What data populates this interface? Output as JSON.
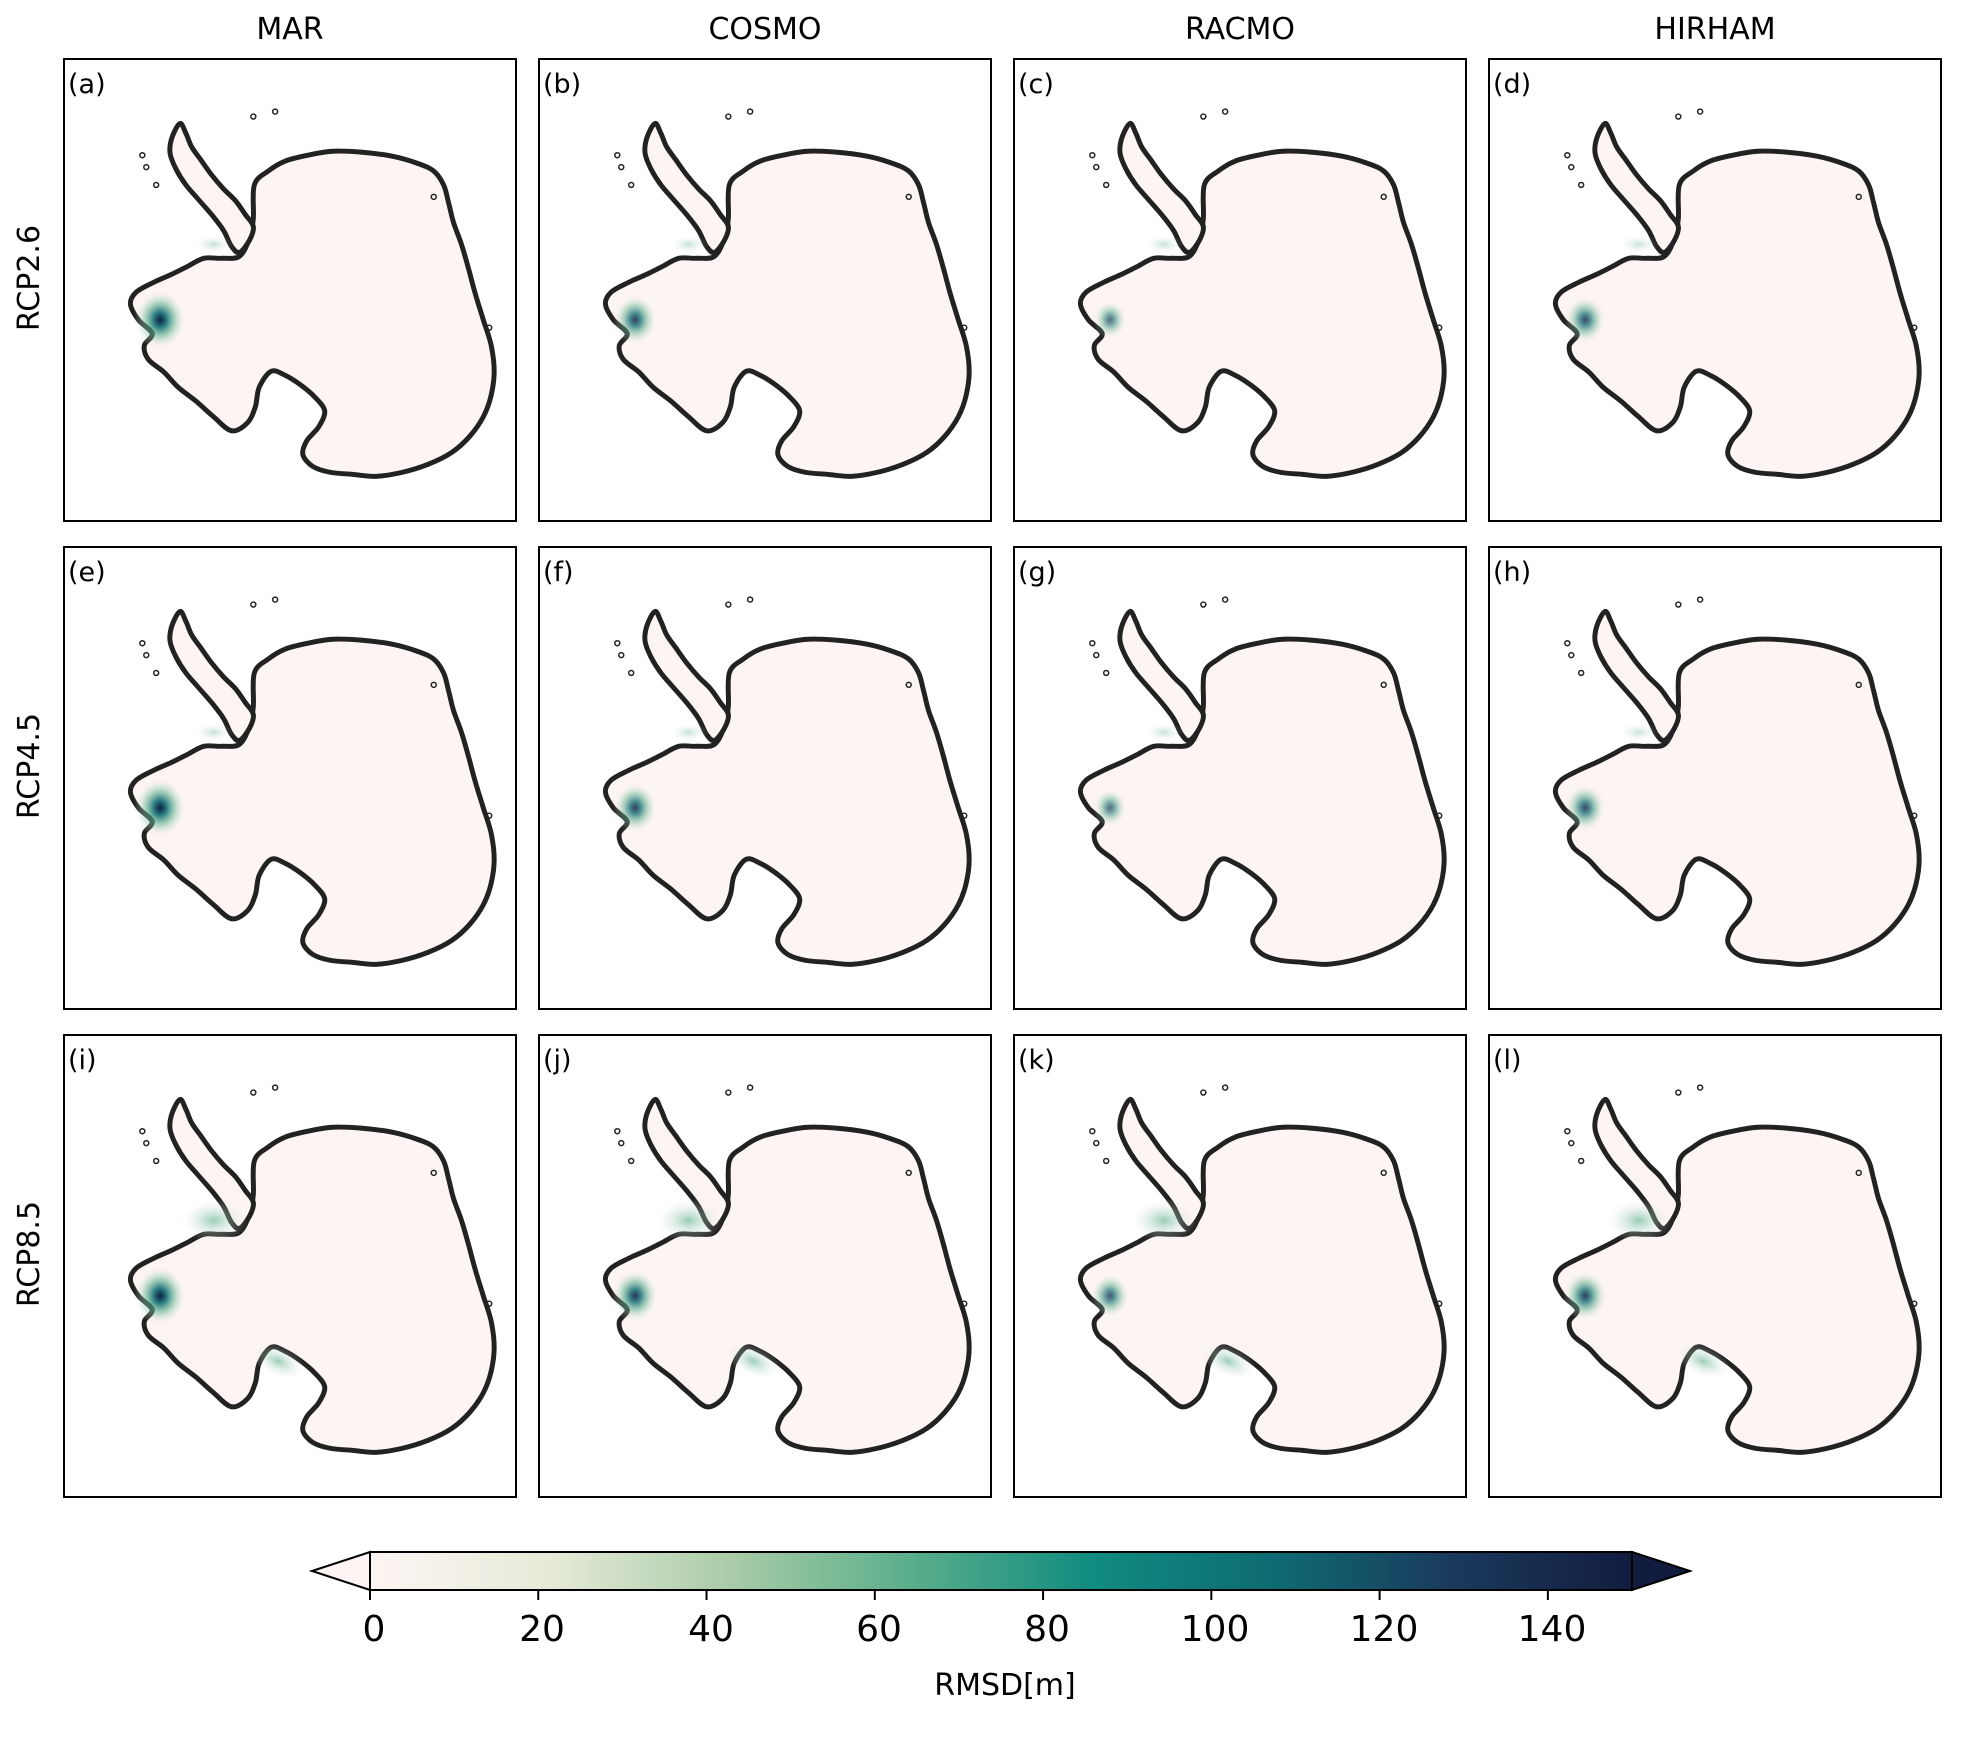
{
  "columns": [
    "MAR",
    "COSMO",
    "RACMO",
    "HIRHAM"
  ],
  "rows": [
    "RCP2.6",
    "RCP4.5",
    "RCP8.5"
  ],
  "panel_labels": [
    "(a)",
    "(b)",
    "(c)",
    "(d)",
    "(e)",
    "(f)",
    "(g)",
    "(h)",
    "(i)",
    "(j)",
    "(k)",
    "(l)"
  ],
  "colorbar": {
    "label": "RMSD[m]",
    "ticks": [
      "0",
      "20",
      "40",
      "60",
      "80",
      "100",
      "120",
      "140"
    ],
    "range": [
      0,
      150
    ],
    "extend": "both",
    "colors": [
      "#fdf5f3",
      "#e6ead8",
      "#a9cca7",
      "#5aae8b",
      "#118c80",
      "#0e6b73",
      "#1a3a5c",
      "#121c3f"
    ]
  },
  "map": {
    "land_fill": "#fdf5f3",
    "coastline_color": "#222222",
    "hotspots": [
      {
        "name": "Pine Island / Amundsen",
        "panels": "all",
        "intensity": "high"
      },
      {
        "name": "Ronne ice shelf edge",
        "panels": "RCP8.5",
        "intensity": "moderate"
      },
      {
        "name": "Ross ice shelf",
        "panels": "RCP8.5",
        "intensity": "moderate"
      }
    ]
  }
}
